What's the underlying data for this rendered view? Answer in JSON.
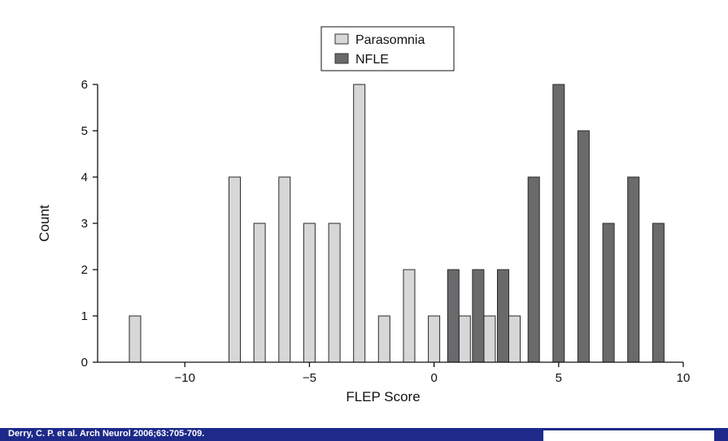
{
  "chart_data": {
    "type": "bar",
    "xlabel": "FLEP Score",
    "ylabel": "Count",
    "xlim": [
      -13.5,
      10
    ],
    "ylim": [
      0,
      6
    ],
    "xticks": [
      -10,
      -5,
      0,
      5,
      10
    ],
    "xtick_labels": [
      "−10",
      "−5",
      "0",
      "5",
      "10"
    ],
    "yticks": [
      0,
      1,
      2,
      3,
      4,
      5,
      6
    ],
    "legend_position": "top-center",
    "colors": {
      "Parasomnia": "#d7d7d7",
      "NFLE": "#6a6a6c"
    },
    "series": [
      {
        "name": "Parasomnia",
        "x": [
          -12,
          -8,
          -7,
          -6,
          -5,
          -4,
          -3,
          -2,
          -1,
          0,
          1,
          2,
          3
        ],
        "values": [
          1,
          4,
          3,
          4,
          3,
          3,
          6,
          1,
          2,
          1,
          1,
          1,
          1
        ]
      },
      {
        "name": "NFLE",
        "x": [
          1,
          2,
          3,
          4,
          5,
          6,
          7,
          8,
          9
        ],
        "values": [
          2,
          2,
          2,
          4,
          6,
          5,
          3,
          4,
          3
        ]
      }
    ]
  },
  "footer": {
    "citation": "Derry, C. P. et al. Arch Neurol 2006;63:705-709."
  }
}
